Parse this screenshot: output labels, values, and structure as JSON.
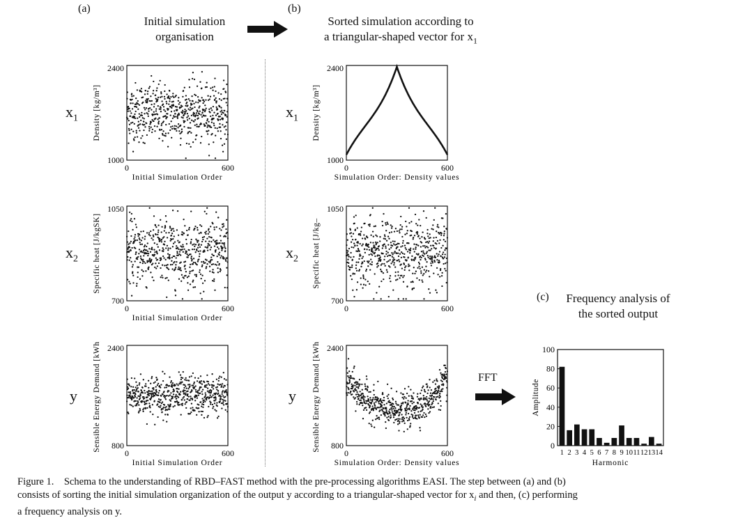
{
  "panels": {
    "a": {
      "tag": "(a)",
      "title_line1": "Initial simulation",
      "title_line2": "organisation"
    },
    "b": {
      "tag": "(b)",
      "title_line1": "Sorted simulation according to",
      "title_line2": "a triangular-shaped vector for x",
      "title_sub": "1"
    },
    "c": {
      "tag": "(c)",
      "title_line1": "Frequency analysis of",
      "title_line2": "the sorted output"
    }
  },
  "row_labels": [
    {
      "main": "x",
      "sub": "1"
    },
    {
      "main": "x",
      "sub": "2"
    },
    {
      "main": "y",
      "sub": ""
    }
  ],
  "fft_label": "FFT",
  "chart_data": [
    {
      "id": "a1",
      "type": "scatter",
      "ylabel": "Density [kg/m³]",
      "xlabel": "Initial Simulation Order",
      "xlim": [
        0,
        600
      ],
      "ylim": [
        1000,
        2400
      ],
      "xticks": [
        "0",
        "600"
      ],
      "yticks": [
        "1000",
        "2400"
      ],
      "n_points": 600,
      "y_center": 1700,
      "y_spread": 520
    },
    {
      "id": "a2",
      "type": "scatter",
      "ylabel": "Specific heat [J/kgSK]",
      "xlabel": "Initial Simulation Order",
      "xlim": [
        0,
        600
      ],
      "ylim": [
        700,
        1050
      ],
      "xticks": [
        "0",
        "600"
      ],
      "yticks": [
        "700",
        "1050"
      ],
      "n_points": 600,
      "y_center": 880,
      "y_spread": 150
    },
    {
      "id": "a3",
      "type": "scatter",
      "ylabel": "Sensible Energy Demand [kWh]",
      "xlabel": "Initial Simulation Order",
      "xlim": [
        0,
        600
      ],
      "ylim": [
        800,
        2400
      ],
      "xticks": [
        "0",
        "600"
      ],
      "yticks": [
        "800",
        "2400"
      ],
      "n_points": 600,
      "y_center": 1600,
      "y_spread": 380
    },
    {
      "id": "b1",
      "type": "line",
      "ylabel": "Density [kg/m³]",
      "xlabel": "Simulation Order: Density values",
      "xlim": [
        0,
        600
      ],
      "ylim": [
        1000,
        2400
      ],
      "xticks": [
        "0",
        "600"
      ],
      "yticks": [
        "1000",
        "2400"
      ],
      "curve": "triangular-sorted",
      "y_min": 1080,
      "y_max": 2380
    },
    {
      "id": "b2",
      "type": "scatter",
      "ylabel": "Specific heat [J/kg–",
      "xlabel": "",
      "xlim": [
        0,
        600
      ],
      "ylim": [
        700,
        1050
      ],
      "xticks": [
        "0",
        "600"
      ],
      "yticks": [
        "700",
        "1050"
      ],
      "n_points": 600,
      "y_center": 880,
      "y_spread": 150
    },
    {
      "id": "b3",
      "type": "scatter",
      "ylabel": "Sensible Energy Demand [kWh]",
      "xlabel": "Simulation Order: Density values",
      "xlim": [
        0,
        600
      ],
      "ylim": [
        800,
        2400
      ],
      "xticks": [
        "0",
        "600"
      ],
      "yticks": [
        "800",
        "2400"
      ],
      "n_points": 600,
      "trend": "u-shaped",
      "y_center_mid": 1350,
      "y_center_edge": 1850,
      "y_spread": 330
    },
    {
      "id": "c1",
      "type": "bar",
      "ylabel": "Amplitude",
      "xlabel": "Harmonic",
      "categories": [
        "1",
        "2",
        "3",
        "4",
        "5",
        "6",
        "7",
        "8",
        "9",
        "10",
        "11",
        "12",
        "13",
        "14"
      ],
      "values": [
        82,
        16,
        22,
        17,
        17,
        8,
        3,
        8,
        21,
        8,
        8,
        2,
        9,
        2
      ],
      "ylim": [
        0,
        100
      ],
      "yticks": [
        "0",
        "20",
        "40",
        "60",
        "80",
        "100"
      ]
    }
  ],
  "caption": {
    "line1": "Figure 1. Schema to the understanding of RBD–FAST method with the pre-processing algorithms EASI. The step between (a) and (b)",
    "line2": "consists of sorting the initial simulation organization of the output y according to a triangular-shaped vector for x",
    "line2_sub": "i",
    "line2_end": " and then, (c) performing",
    "line3": "a frequency analysis on y."
  }
}
